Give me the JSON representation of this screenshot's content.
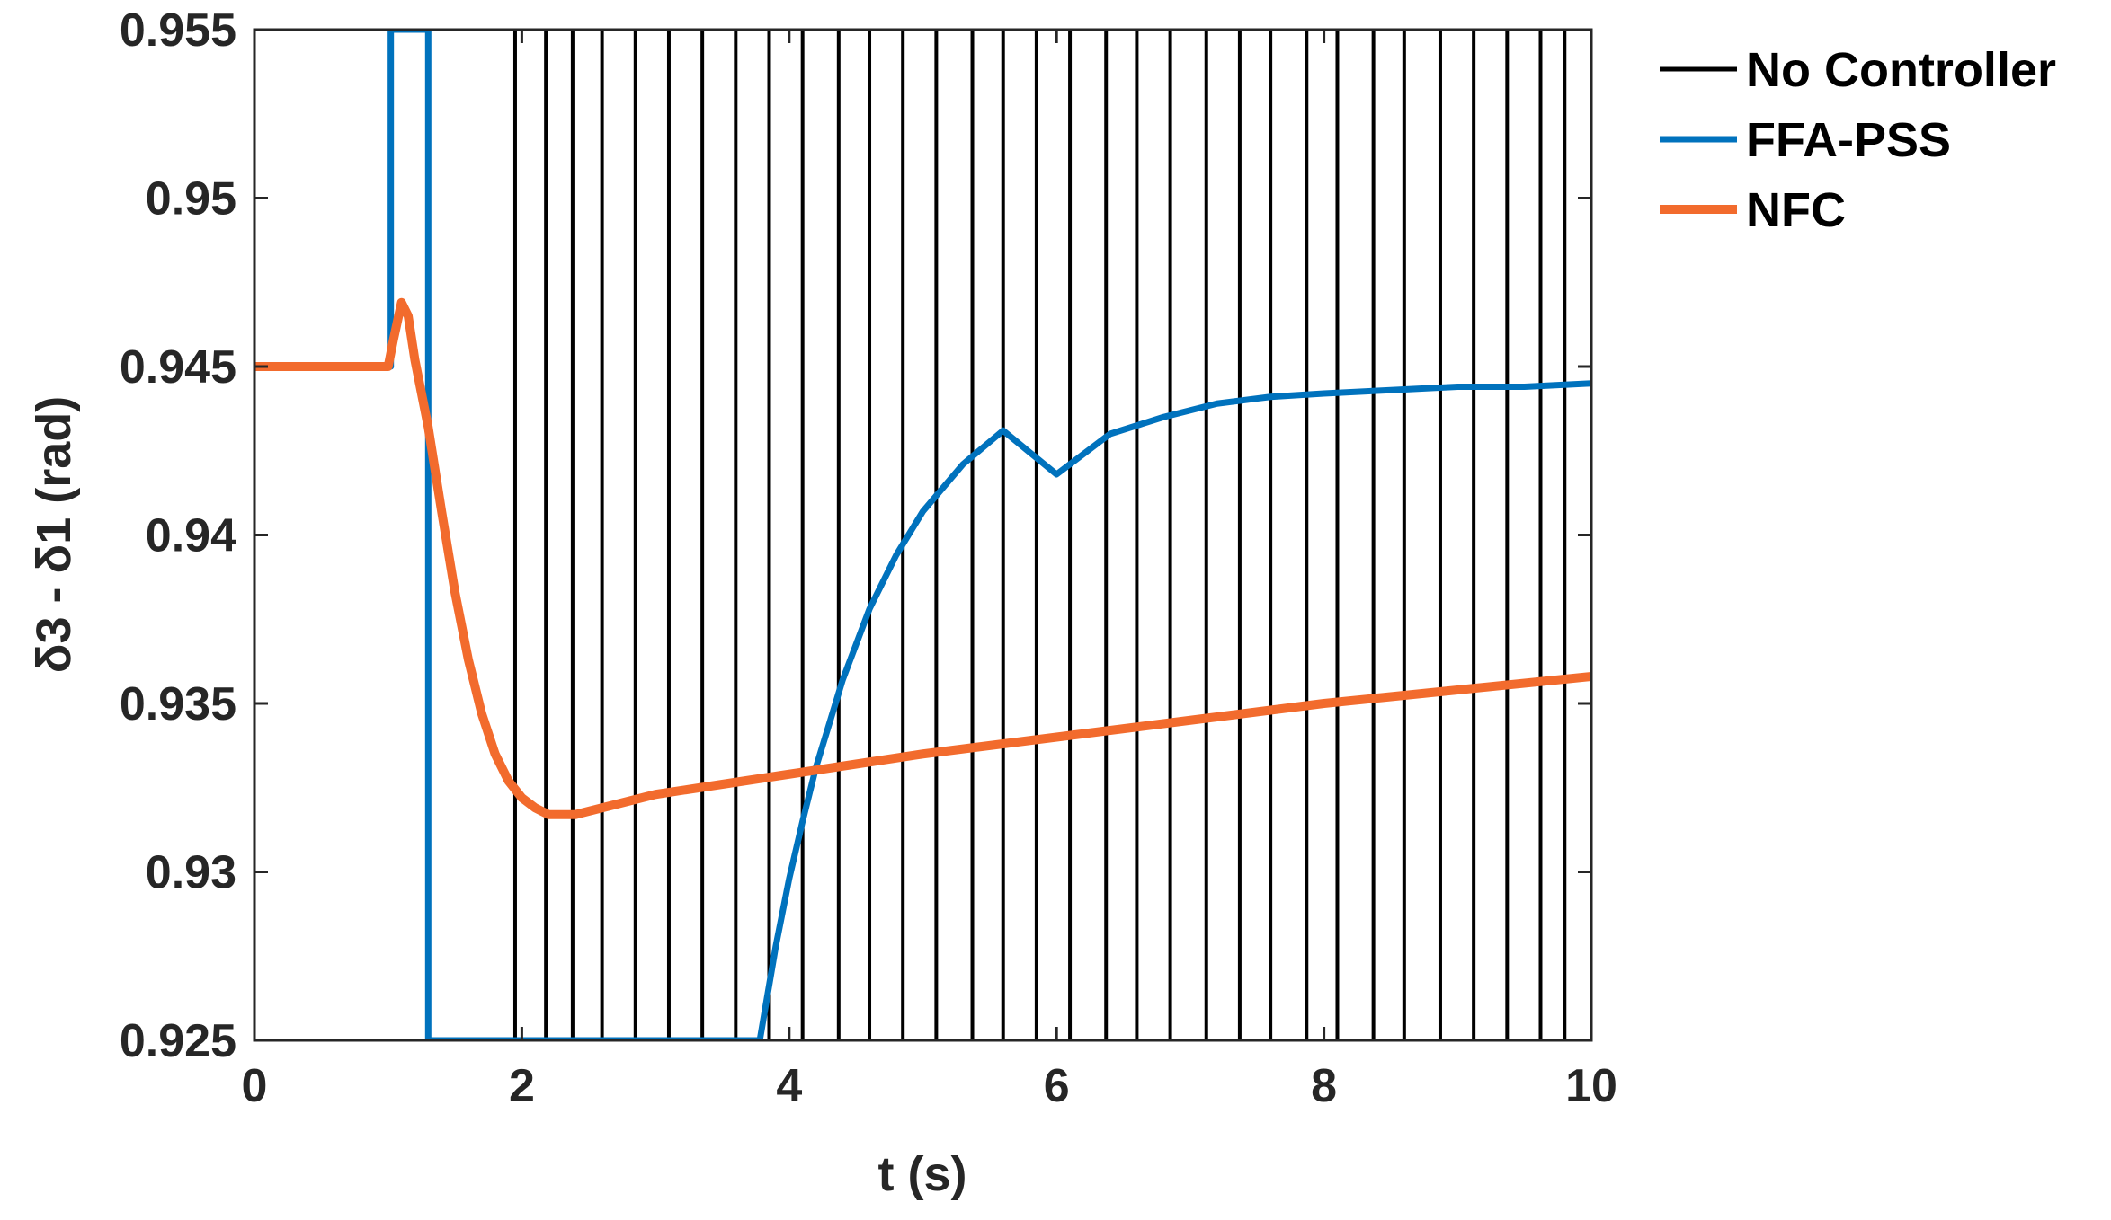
{
  "chart_data": {
    "type": "line",
    "title": "",
    "xlabel": "t (s)",
    "ylabel": "δ3 - δ1 (rad)",
    "xlim": [
      0,
      10
    ],
    "ylim": [
      0.925,
      0.955
    ],
    "xticks": [
      0,
      2,
      4,
      6,
      8,
      10
    ],
    "xtick_labels": [
      "0",
      "2",
      "4",
      "6",
      "8",
      "10"
    ],
    "yticks": [
      0.925,
      0.93,
      0.935,
      0.94,
      0.945,
      0.95,
      0.955
    ],
    "ytick_labels": [
      "0.925",
      "0.93",
      "0.935",
      "0.94",
      "0.945",
      "0.95",
      "0.955"
    ],
    "grid": false,
    "legend_position": "outside-right-top",
    "series": [
      {
        "name": "No Controller",
        "color": "#000000",
        "style": "oscillation-off-scale",
        "vertical_crossings_x": [
          1.95,
          2.18,
          2.38,
          2.6,
          2.85,
          3.1,
          3.35,
          3.6,
          3.85,
          4.1,
          4.37,
          4.6,
          4.85,
          5.1,
          5.37,
          5.6,
          5.85,
          6.1,
          6.37,
          6.6,
          6.85,
          7.12,
          7.37,
          7.6,
          7.87,
          8.1,
          8.37,
          8.6,
          8.87,
          9.12,
          9.37,
          9.62,
          9.8
        ]
      },
      {
        "name": "FFA-PSS",
        "color": "#0072BD",
        "x": [
          0,
          1.02,
          1.02,
          1.3,
          1.3,
          3.78,
          3.9,
          4.0,
          4.1,
          4.2,
          4.4,
          4.6,
          4.8,
          5.0,
          5.3,
          5.6,
          6.0,
          6.4,
          6.8,
          7.2,
          7.6,
          8.0,
          8.5,
          9.0,
          9.5,
          10.0
        ],
        "y": [
          0.945,
          0.945,
          0.955,
          0.955,
          0.925,
          0.925,
          0.9278,
          0.9298,
          0.9315,
          0.9331,
          0.9357,
          0.9378,
          0.9394,
          0.9407,
          0.9421,
          0.9431,
          0.9418,
          0.943,
          0.9435,
          0.9439,
          0.9441,
          0.9442,
          0.9443,
          0.9444,
          0.9444,
          0.9445
        ]
      },
      {
        "name": "NFC",
        "color": "#F26B2D",
        "x": [
          0,
          1.0,
          1.04,
          1.1,
          1.15,
          1.2,
          1.3,
          1.4,
          1.5,
          1.6,
          1.7,
          1.8,
          1.9,
          2.0,
          2.1,
          2.2,
          2.3,
          2.4,
          2.5,
          2.6,
          2.8,
          3.0,
          3.5,
          4.0,
          4.5,
          5.0,
          6.0,
          7.0,
          8.0,
          9.0,
          10.0
        ],
        "y": [
          0.945,
          0.945,
          0.9458,
          0.9469,
          0.9465,
          0.9452,
          0.9432,
          0.9407,
          0.9383,
          0.9363,
          0.9347,
          0.9335,
          0.9327,
          0.9322,
          0.9319,
          0.9317,
          0.9317,
          0.9317,
          0.9318,
          0.9319,
          0.9321,
          0.9323,
          0.9326,
          0.9329,
          0.9332,
          0.9335,
          0.934,
          0.9345,
          0.935,
          0.9354,
          0.9358
        ]
      }
    ]
  }
}
